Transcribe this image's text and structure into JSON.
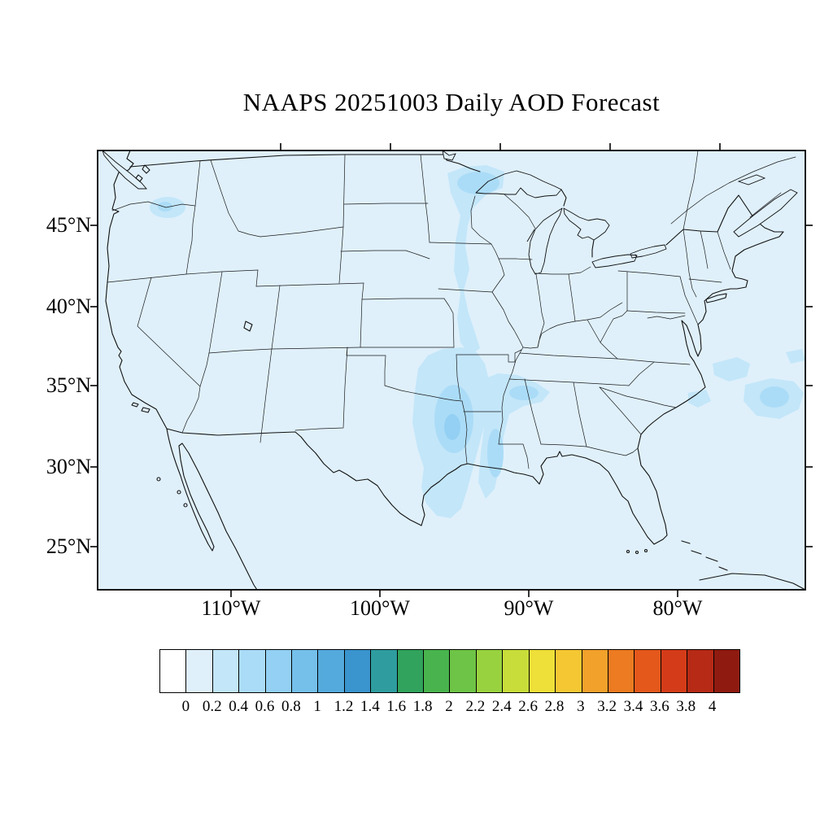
{
  "figure": {
    "title": "NAAPS 20251003 Daily AOD Forecast"
  },
  "map": {
    "lat_tick_labels": [
      "45°N",
      "40°N",
      "35°N",
      "30°N",
      "25°N"
    ],
    "lon_tick_labels": [
      "110°W",
      "100°W",
      "90°W",
      "80°W"
    ]
  },
  "aod": {
    "background_value_color": "#dff0fb",
    "patch_light_color": "#c3e6f9",
    "patch_medium_color": "#abdcf7",
    "patch_deep_color": "#93d0f3",
    "regions": [
      "western-washington",
      "lake-superior-minnesota-band",
      "mississippi-valley-band",
      "east-texas-arkansas-louisiana",
      "mississippi-alabama-tennessee",
      "atlantic-offshore-carolinas"
    ]
  },
  "colorbar": {
    "tick_labels": [
      "0",
      "0.2",
      "0.4",
      "0.6",
      "0.8",
      "1",
      "1.2",
      "1.4",
      "1.6",
      "1.8",
      "2",
      "2.2",
      "2.4",
      "2.6",
      "2.8",
      "3",
      "3.2",
      "3.4",
      "3.6",
      "3.8",
      "4"
    ],
    "cell_colors": [
      "#ffffff",
      "#dff0fb",
      "#c3e6f9",
      "#abdcf7",
      "#93d0f3",
      "#74c0ea",
      "#55aadd",
      "#3a94cd",
      "#2f9d9f",
      "#31a35c",
      "#49b44e",
      "#6ec446",
      "#99d23f",
      "#c8dd3a",
      "#eedf39",
      "#f5c733",
      "#f2a12b",
      "#ec7b21",
      "#e4581c",
      "#d43c19",
      "#b62a16",
      "#8f1b10"
    ]
  }
}
